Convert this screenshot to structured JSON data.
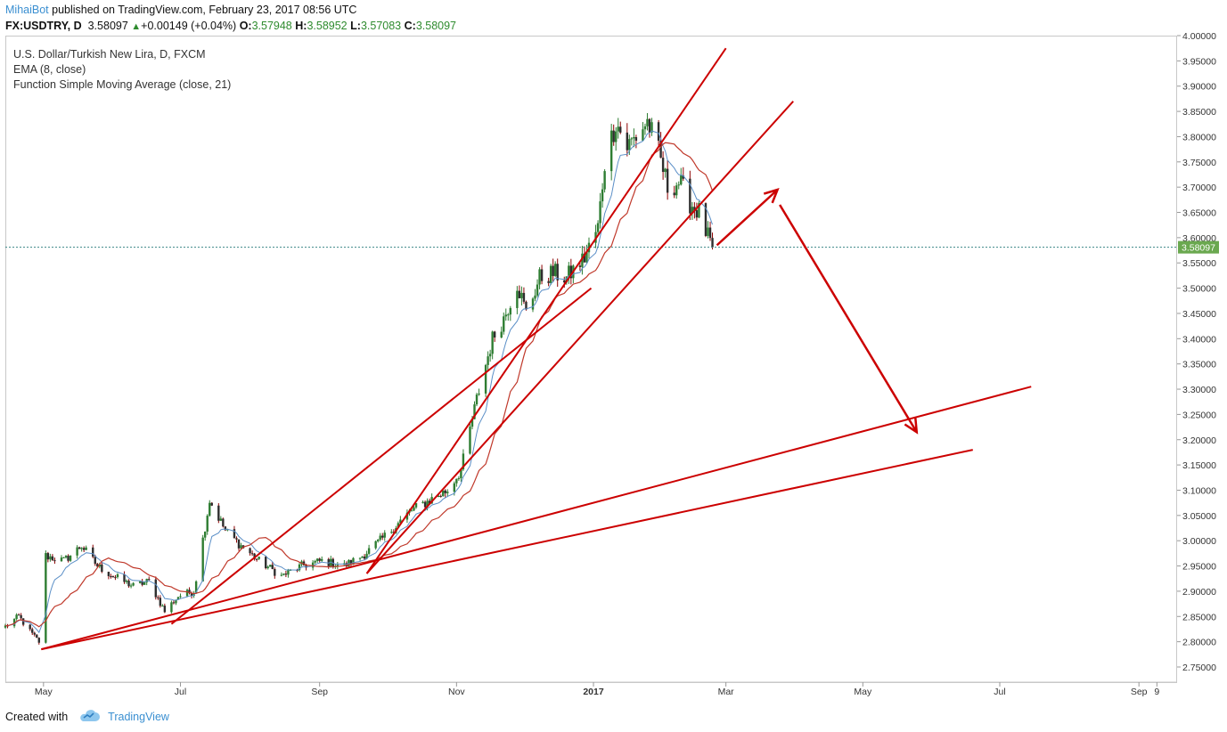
{
  "header": {
    "author": "MihaiBot",
    "published_text": " published on TradingView.com, February 23, 2017 08:56 UTC",
    "symbol": "FX:USDTRY, D",
    "last": "3.58097",
    "change": "+0.00149 (+0.04%)",
    "open_label": "O:",
    "open": "3.57948",
    "high_label": "H:",
    "high": "3.58952",
    "low_label": "L:",
    "low": "3.57083",
    "close_label": "C:",
    "close": "3.58097"
  },
  "legend": {
    "title": "U.S. Dollar/Turkish New Lira, D, FXCM",
    "ema": "EMA (8, close)",
    "sma": "Function Simple Moving Average (close, 21)"
  },
  "footer": {
    "created_with": "Created with",
    "brand": "TradingView"
  },
  "colors": {
    "accent": "#3a8fd1",
    "up": "#2e7d32",
    "down": "#8b0000",
    "trend": "#cc0000",
    "ema": "#5b8fc7",
    "sma": "#c0392b",
    "price_tag": "#6aa84f"
  },
  "chart_data": {
    "type": "candlestick",
    "title": "U.S. Dollar/Turkish New Lira, D, FXCM",
    "ylim": [
      2.72,
      4.0
    ],
    "y_ticks": [
      "4.00000",
      "3.95000",
      "3.90000",
      "3.85000",
      "3.80000",
      "3.75000",
      "3.70000",
      "3.65000",
      "3.60000",
      "3.55000",
      "3.50000",
      "3.45000",
      "3.40000",
      "3.35000",
      "3.30000",
      "3.25000",
      "3.20000",
      "3.15000",
      "3.10000",
      "3.05000",
      "3.00000",
      "2.95000",
      "2.90000",
      "2.85000",
      "2.80000",
      "2.75000"
    ],
    "x_ticks": [
      "May",
      "Jul",
      "Sep",
      "Nov",
      "2017",
      "Mar",
      "May",
      "Jul",
      "Sep",
      "9"
    ],
    "last_price": "3.58097",
    "price_path": [
      [
        "2016-04-14",
        2.83
      ],
      [
        "2016-04-20",
        2.85
      ],
      [
        "2016-04-25",
        2.82
      ],
      [
        "2016-04-29",
        2.8
      ],
      [
        "2016-05-02",
        2.97
      ],
      [
        "2016-05-10",
        2.96
      ],
      [
        "2016-05-18",
        2.99
      ],
      [
        "2016-05-25",
        2.95
      ],
      [
        "2016-06-01",
        2.93
      ],
      [
        "2016-06-10",
        2.91
      ],
      [
        "2016-06-17",
        2.92
      ],
      [
        "2016-06-24",
        2.86
      ],
      [
        "2016-06-30",
        2.89
      ],
      [
        "2016-07-07",
        2.9
      ],
      [
        "2016-07-14",
        3.08
      ],
      [
        "2016-07-21",
        3.02
      ],
      [
        "2016-07-28",
        2.99
      ],
      [
        "2016-08-05",
        2.96
      ],
      [
        "2016-08-15",
        2.93
      ],
      [
        "2016-08-24",
        2.95
      ],
      [
        "2016-09-02",
        2.96
      ],
      [
        "2016-09-12",
        2.95
      ],
      [
        "2016-09-20",
        2.97
      ],
      [
        "2016-09-28",
        3.0
      ],
      [
        "2016-10-05",
        3.03
      ],
      [
        "2016-10-12",
        3.06
      ],
      [
        "2016-10-20",
        3.08
      ],
      [
        "2016-10-28",
        3.1
      ],
      [
        "2016-11-03",
        3.14
      ],
      [
        "2016-11-10",
        3.28
      ],
      [
        "2016-11-17",
        3.4
      ],
      [
        "2016-11-22",
        3.44
      ],
      [
        "2016-11-28",
        3.51
      ],
      [
        "2016-12-02",
        3.45
      ],
      [
        "2016-12-08",
        3.52
      ],
      [
        "2016-12-14",
        3.53
      ],
      [
        "2016-12-20",
        3.52
      ],
      [
        "2016-12-28",
        3.56
      ],
      [
        "2017-01-03",
        3.62
      ],
      [
        "2017-01-06",
        3.75
      ],
      [
        "2017-01-11",
        3.83
      ],
      [
        "2017-01-16",
        3.78
      ],
      [
        "2017-01-20",
        3.8
      ],
      [
        "2017-01-25",
        3.83
      ],
      [
        "2017-01-30",
        3.77
      ],
      [
        "2017-02-03",
        3.7
      ],
      [
        "2017-02-08",
        3.71
      ],
      [
        "2017-02-13",
        3.67
      ],
      [
        "2017-02-17",
        3.65
      ],
      [
        "2017-02-21",
        3.6
      ],
      [
        "2017-02-23",
        3.58
      ]
    ],
    "annotations": {
      "trendlines": [
        {
          "from": [
            "2016-04-30",
            2.785
          ],
          "to": [
            "2017-07-15",
            3.305
          ]
        },
        {
          "from": [
            "2016-04-30",
            2.785
          ],
          "to": [
            "2017-06-19",
            3.18
          ]
        },
        {
          "from": [
            "2016-06-27",
            2.835
          ],
          "to": [
            "2016-12-31",
            3.5
          ]
        },
        {
          "from": [
            "2016-09-22",
            2.935
          ],
          "to": [
            "2017-03-31",
            3.87
          ]
        },
        {
          "from": [
            "2016-09-22",
            2.935
          ],
          "to": [
            "2017-03-01",
            3.975
          ]
        }
      ],
      "arrows": [
        {
          "from": [
            "2017-02-25",
            3.585
          ],
          "to": [
            "2017-03-24",
            3.695
          ]
        },
        {
          "from": [
            "2017-03-25",
            3.665
          ],
          "to": [
            "2017-05-25",
            3.215
          ]
        }
      ]
    }
  }
}
